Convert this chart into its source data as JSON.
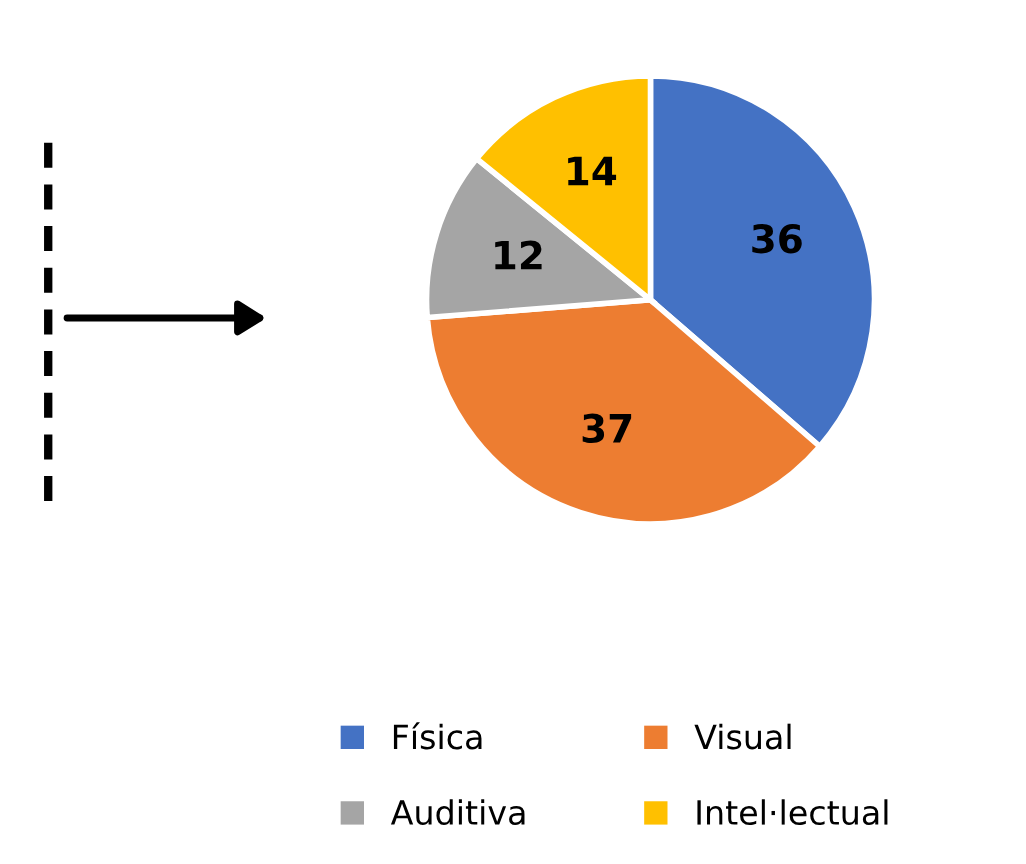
{
  "chart_data": {
    "type": "pie",
    "categories": [
      "Física",
      "Visual",
      "Auditiva",
      "Intel·lectual"
    ],
    "values": [
      36,
      37,
      12,
      14
    ],
    "colors": [
      "#4472c4",
      "#ed7d31",
      "#a5a5a5",
      "#ffc000"
    ],
    "data_labels": true,
    "legend": "bottom"
  }
}
